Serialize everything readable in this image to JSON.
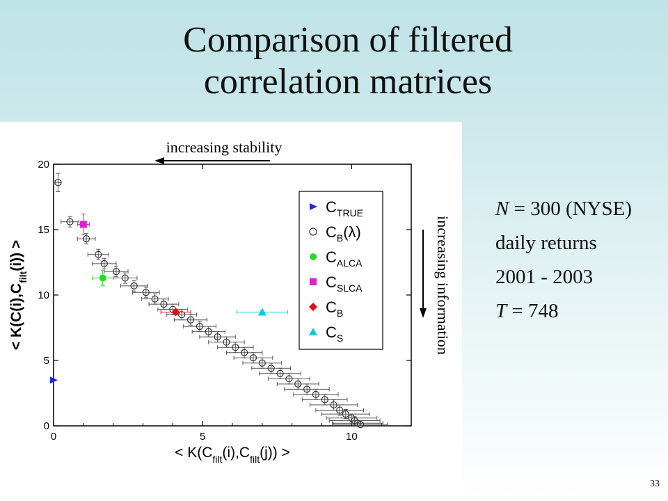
{
  "slide": {
    "title_line1": "Comparison of filtered",
    "title_line2": "correlation matrices",
    "notes": {
      "n_var": "N",
      "n_rest": " = 300 (NYSE)",
      "returns": "daily returns",
      "years": "2001 - 2003",
      "t_var": "T",
      "t_rest": " = 748"
    },
    "page_number": "33"
  },
  "chart_data": {
    "type": "scatter",
    "xlabel": "< K(C_filt(i), C_filt(j)) >",
    "ylabel": "< K(C(i), C_filt(i)) >",
    "xlim": [
      0,
      12
    ],
    "ylim": [
      0,
      20
    ],
    "x_ticks": [
      0,
      5,
      10
    ],
    "y_ticks": [
      0,
      5,
      10,
      15,
      20
    ],
    "grid": false,
    "legend_position": "top-right",
    "annotations": {
      "top": "increasing stability",
      "right": "increasing information"
    },
    "series": [
      {
        "name": "C_TRUE",
        "marker": "triangle-right",
        "color": "#1a2ad6",
        "points": [
          {
            "x": 0.0,
            "y": 3.5,
            "xerr": 0,
            "yerr": 0
          }
        ]
      },
      {
        "name": "C_B(λ)",
        "marker": "open-circle",
        "color": "#333333",
        "points": [
          {
            "x": 0.15,
            "y": 18.6,
            "xerr": 0.1,
            "yerr": 0.7
          },
          {
            "x": 0.55,
            "y": 15.6,
            "xerr": 0.3,
            "yerr": 0.4
          },
          {
            "x": 1.1,
            "y": 14.3,
            "xerr": 0.3,
            "yerr": 0.4
          },
          {
            "x": 1.5,
            "y": 13.1,
            "xerr": 0.35,
            "yerr": 0.4
          },
          {
            "x": 1.7,
            "y": 12.4,
            "xerr": 0.4,
            "yerr": 0.4
          },
          {
            "x": 2.1,
            "y": 11.8,
            "xerr": 0.4,
            "yerr": 0.4
          },
          {
            "x": 2.4,
            "y": 11.3,
            "xerr": 0.4,
            "yerr": 0.4
          },
          {
            "x": 2.7,
            "y": 10.7,
            "xerr": 0.45,
            "yerr": 0.4
          },
          {
            "x": 3.1,
            "y": 10.2,
            "xerr": 0.45,
            "yerr": 0.4
          },
          {
            "x": 3.4,
            "y": 9.7,
            "xerr": 0.45,
            "yerr": 0.4
          },
          {
            "x": 3.7,
            "y": 9.3,
            "xerr": 0.5,
            "yerr": 0.4
          },
          {
            "x": 4.0,
            "y": 8.9,
            "xerr": 0.5,
            "yerr": 0.4
          },
          {
            "x": 4.3,
            "y": 8.5,
            "xerr": 0.5,
            "yerr": 0.4
          },
          {
            "x": 4.6,
            "y": 8.1,
            "xerr": 0.55,
            "yerr": 0.4
          },
          {
            "x": 4.9,
            "y": 7.6,
            "xerr": 0.55,
            "yerr": 0.4
          },
          {
            "x": 5.2,
            "y": 7.2,
            "xerr": 0.55,
            "yerr": 0.4
          },
          {
            "x": 5.5,
            "y": 6.8,
            "xerr": 0.6,
            "yerr": 0.4
          },
          {
            "x": 5.8,
            "y": 6.4,
            "xerr": 0.6,
            "yerr": 0.4
          },
          {
            "x": 6.1,
            "y": 6.0,
            "xerr": 0.6,
            "yerr": 0.4
          },
          {
            "x": 6.4,
            "y": 5.6,
            "xerr": 0.6,
            "yerr": 0.4
          },
          {
            "x": 6.7,
            "y": 5.2,
            "xerr": 0.65,
            "yerr": 0.4
          },
          {
            "x": 7.0,
            "y": 4.8,
            "xerr": 0.65,
            "yerr": 0.4
          },
          {
            "x": 7.3,
            "y": 4.4,
            "xerr": 0.65,
            "yerr": 0.4
          },
          {
            "x": 7.6,
            "y": 4.0,
            "xerr": 0.7,
            "yerr": 0.4
          },
          {
            "x": 7.9,
            "y": 3.6,
            "xerr": 0.7,
            "yerr": 0.4
          },
          {
            "x": 8.2,
            "y": 3.2,
            "xerr": 0.7,
            "yerr": 0.4
          },
          {
            "x": 8.5,
            "y": 2.8,
            "xerr": 0.75,
            "yerr": 0.4
          },
          {
            "x": 8.8,
            "y": 2.4,
            "xerr": 0.75,
            "yerr": 0.4
          },
          {
            "x": 9.1,
            "y": 2.0,
            "xerr": 0.75,
            "yerr": 0.4
          },
          {
            "x": 9.4,
            "y": 1.6,
            "xerr": 0.8,
            "yerr": 0.4
          },
          {
            "x": 9.6,
            "y": 1.2,
            "xerr": 0.8,
            "yerr": 0.4
          },
          {
            "x": 9.8,
            "y": 0.9,
            "xerr": 0.8,
            "yerr": 0.35
          },
          {
            "x": 10.0,
            "y": 0.6,
            "xerr": 0.85,
            "yerr": 0.3
          },
          {
            "x": 10.1,
            "y": 0.4,
            "xerr": 0.85,
            "yerr": 0.3
          },
          {
            "x": 10.2,
            "y": 0.2,
            "xerr": 0.85,
            "yerr": 0.2
          },
          {
            "x": 10.3,
            "y": 0.1,
            "xerr": 0.9,
            "yerr": 0.1
          }
        ]
      },
      {
        "name": "C_ALCA",
        "marker": "filled-circle",
        "color": "#22dd22",
        "points": [
          {
            "x": 1.65,
            "y": 11.3,
            "xerr": 0.35,
            "yerr": 0.6
          }
        ]
      },
      {
        "name": "C_SLCA",
        "marker": "filled-square",
        "color": "#e020d0",
        "points": [
          {
            "x": 1.0,
            "y": 15.4,
            "xerr": 0.2,
            "yerr": 0.8
          }
        ]
      },
      {
        "name": "C_B",
        "marker": "filled-diamond",
        "color": "#e01010",
        "points": [
          {
            "x": 4.1,
            "y": 8.7,
            "xerr": 0.5,
            "yerr": 0.2
          }
        ]
      },
      {
        "name": "C_S",
        "marker": "filled-triangle-up",
        "color": "#10c8e0",
        "points": [
          {
            "x": 7.0,
            "y": 8.7,
            "xerr": 0.85,
            "yerr": 0.1
          }
        ]
      }
    ],
    "legend": [
      {
        "main": "C",
        "sub": "TRUE",
        "suffix": "",
        "color": "#1a2ad6",
        "marker": "triangle-right"
      },
      {
        "main": "C",
        "sub": "B",
        "suffix": "(λ)",
        "color": "#333333",
        "marker": "open-circle"
      },
      {
        "main": "C",
        "sub": "ALCA",
        "suffix": "",
        "color": "#22dd22",
        "marker": "filled-circle"
      },
      {
        "main": "C",
        "sub": "SLCA",
        "suffix": "",
        "color": "#e020d0",
        "marker": "filled-square"
      },
      {
        "main": "C",
        "sub": "B",
        "suffix": "",
        "color": "#e01010",
        "marker": "filled-diamond"
      },
      {
        "main": "C",
        "sub": "S",
        "suffix": "",
        "color": "#10c8e0",
        "marker": "filled-triangle-up"
      }
    ]
  }
}
